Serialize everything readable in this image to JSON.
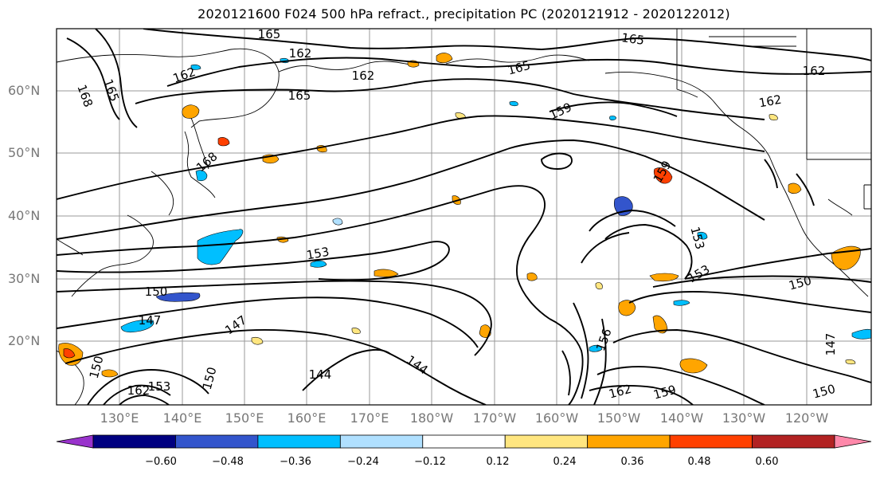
{
  "title": "2020121600 F024 500 hPa refract., precipitation PC (2020121912 - 2020122012)",
  "lat_labels": [
    "60°N",
    "50°N",
    "40°N",
    "30°N",
    "20°N"
  ],
  "lon_labels": [
    "130°E",
    "140°E",
    "150°E",
    "160°E",
    "170°E",
    "180°W",
    "170°W",
    "160°W",
    "150°W",
    "140°W",
    "130°W",
    "120°W"
  ],
  "colorbar": {
    "ticks": [
      "−0.60",
      "−0.48",
      "−0.36",
      "−0.24",
      "−0.12",
      "0.12",
      "0.24",
      "0.36",
      "0.48",
      "0.60"
    ],
    "colors": [
      "#9933cc",
      "#000080",
      "#3355cc",
      "#00bfff",
      "#b0e0ff",
      "#ffffff",
      "#ffe680",
      "#ffa500",
      "#ff4000",
      "#b22222",
      "#ff88aa"
    ]
  },
  "contour_labels": [
    "165",
    "162",
    "162",
    "165",
    "165",
    "168",
    "165",
    "162",
    "162",
    "168",
    "165",
    "162",
    "159",
    "159",
    "153",
    "153",
    "150",
    "153",
    "150",
    "150",
    "147",
    "147",
    "147",
    "144",
    "144",
    "156",
    "162",
    "159",
    "150",
    "150",
    "162",
    "153"
  ]
}
